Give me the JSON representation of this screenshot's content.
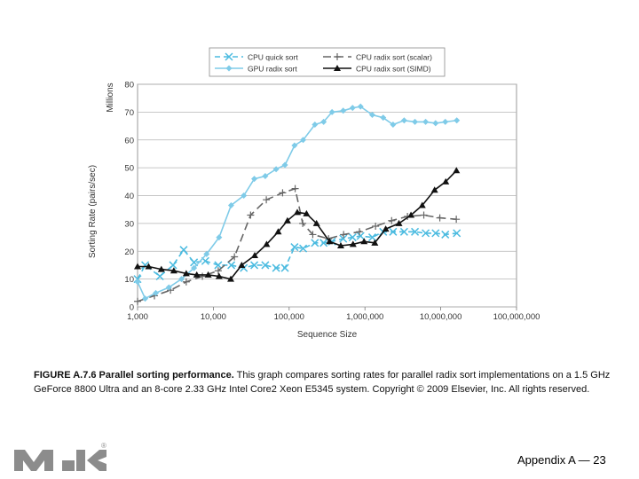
{
  "chart_data": {
    "type": "line",
    "x_scale": "log",
    "xlabel": "Sequence Size",
    "ylabel": "Sorting Rate (pairs/sec)",
    "y_unit_label": "Millions",
    "xlim": [
      1000,
      100000000
    ],
    "ylim": [
      0,
      80
    ],
    "x_ticks": [
      1000,
      10000,
      100000,
      1000000,
      10000000,
      100000000
    ],
    "x_tick_labels": [
      "1,000",
      "10,000",
      "100,000",
      "1,000,000",
      "10,000,000",
      "100,000,000"
    ],
    "y_ticks": [
      0,
      10,
      20,
      30,
      40,
      50,
      60,
      70,
      80
    ],
    "legend_position": "top-center",
    "series": [
      {
        "name": "CPU quick sort",
        "color": "#4bbbe0",
        "marker": "x",
        "dash": "6,4",
        "x": [
          1000,
          1260,
          1970,
          2940,
          4060,
          5560,
          7840,
          11600,
          17240,
          25200,
          34700,
          48400,
          67300,
          88000,
          117800,
          153000,
          218600,
          285000,
          368000,
          517000,
          687000,
          875000,
          1250000,
          1740000,
          2350000,
          3290000,
          4570000,
          6320000,
          8550000,
          11480000,
          16280000
        ],
        "y": [
          10,
          15,
          11,
          15,
          20.5,
          16,
          16.5,
          15,
          15,
          14,
          15,
          15,
          14,
          14,
          21.5,
          21,
          23,
          23,
          23.5,
          24.5,
          25,
          25.5,
          25,
          27,
          27,
          27,
          27,
          26.5,
          26.5,
          26,
          26.5
        ]
      },
      {
        "name": "CPU radix sort (scalar)",
        "color": "#666666",
        "marker": "plus",
        "dash": "9,5",
        "x": [
          1000,
          1670,
          2720,
          4390,
          7170,
          11600,
          18980,
          31000,
          50000,
          82000,
          120000,
          151000,
          205000,
          331000,
          523000,
          847000,
          1380000,
          2250000,
          3640000,
          5980000,
          9730000,
          16050000
        ],
        "y": [
          2,
          4,
          6,
          9,
          11,
          13,
          18,
          33,
          38.5,
          41,
          42.5,
          30,
          26,
          24.5,
          26,
          27,
          29,
          31,
          32.5,
          33,
          32,
          31.5
        ]
      },
      {
        "name": "GPU radix sort",
        "color": "#7fcbe8",
        "marker": "diamond",
        "dash": "",
        "x": [
          1000,
          1260,
          1740,
          2590,
          3800,
          5560,
          8140,
          11900,
          17160,
          25200,
          34700,
          48400,
          67300,
          88000,
          117800,
          153000,
          218600,
          285000,
          368000,
          517000,
          687000,
          875000,
          1250000,
          1740000,
          2350000,
          3290000,
          4570000,
          6320000,
          8550000,
          11480000,
          16280000
        ],
        "y": [
          9,
          3,
          5,
          7,
          10,
          14,
          19,
          25,
          36.5,
          40,
          46,
          47,
          49.5,
          51,
          58,
          60,
          65.5,
          66.5,
          70,
          70.5,
          71.5,
          72,
          69,
          68,
          65.5,
          67,
          66.5,
          66.5,
          66,
          66.5,
          67
        ]
      },
      {
        "name": "CPU radix sort (SIMD)",
        "color": "#111111",
        "marker": "triangle",
        "dash": "",
        "x": [
          1000,
          1400,
          2060,
          3010,
          4390,
          6040,
          8550,
          11900,
          16970,
          23650,
          35130,
          50400,
          71700,
          95000,
          128100,
          169500,
          229900,
          340800,
          480200,
          696900,
          974800,
          1350000,
          1880000,
          2810000,
          4050000,
          5700000,
          8300000,
          11640000,
          16110000
        ],
        "y": [
          14.5,
          14.5,
          13.5,
          13,
          12,
          11.5,
          11.5,
          11,
          10,
          15,
          18.5,
          22.5,
          27,
          31,
          34,
          33.5,
          30,
          23.5,
          22,
          22.5,
          23.5,
          23,
          28,
          30,
          33,
          36.5,
          42,
          45,
          49
        ]
      }
    ]
  },
  "caption": {
    "bold": "FIGURE A.7.6 Parallel sorting performance.",
    "text": "This graph compares sorting rates for parallel radix sort implementations on a 1.5 GHz GeForce 8800 Ultra and an 8-core 2.33 GHz Intel Core2 Xeon E5345 system. Copyright © 2009 Elsevier, Inc. All rights reserved."
  },
  "footer": {
    "label": "Appendix A — 23"
  },
  "logo": {
    "mark": "MK",
    "registered": "®"
  }
}
